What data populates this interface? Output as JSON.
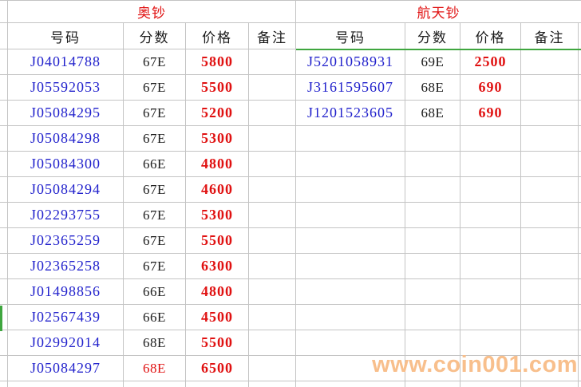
{
  "tables": {
    "left": {
      "title": "奥钞",
      "columns": [
        "号码",
        "分数",
        "价格",
        "备注"
      ],
      "rows": [
        {
          "number": "J04014788",
          "score": "67E",
          "price": "5800",
          "note": ""
        },
        {
          "number": "J05592053",
          "score": "67E",
          "price": "5500",
          "note": ""
        },
        {
          "number": "J05084295",
          "score": "67E",
          "price": "5200",
          "note": ""
        },
        {
          "number": "J05084298",
          "score": "67E",
          "price": "5300",
          "note": ""
        },
        {
          "number": "J05084300",
          "score": "66E",
          "price": "4800",
          "note": ""
        },
        {
          "number": "J05084294",
          "score": "67E",
          "price": "4600",
          "note": ""
        },
        {
          "number": "J02293755",
          "score": "67E",
          "price": "5300",
          "note": ""
        },
        {
          "number": "J02365259",
          "score": "67E",
          "price": "5500",
          "note": ""
        },
        {
          "number": "J02365258",
          "score": "67E",
          "price": "6300",
          "note": ""
        },
        {
          "number": "J01498856",
          "score": "66E",
          "price": "4800",
          "note": ""
        },
        {
          "number": "J02567439",
          "score": "66E",
          "price": "4500",
          "note": ""
        },
        {
          "number": "J02992014",
          "score": "68E",
          "price": "5500",
          "note": ""
        },
        {
          "number": "J05084297",
          "score": "68E",
          "price": "6500",
          "note": "",
          "score_red": true
        }
      ]
    },
    "right": {
      "title": "航天钞",
      "columns": [
        "号码",
        "分数",
        "价格",
        "备注"
      ],
      "rows": [
        {
          "number": "J5201058931",
          "score": "69E",
          "price": "2500",
          "note": ""
        },
        {
          "number": "J3161595607",
          "score": "68E",
          "price": "690",
          "note": ""
        },
        {
          "number": "J1201523605",
          "score": "68E",
          "price": "690",
          "note": ""
        }
      ]
    }
  },
  "body_row_count": 13,
  "watermark": {
    "text": "www.coin001.com",
    "color": "#f8bf8c"
  },
  "colors": {
    "gridline": "#c4c4c4",
    "number_blue": "#2222cc",
    "price_red": "#e01111",
    "title_red": "#e01111",
    "score_black": "#1c1c1c",
    "selection_green": "#3fa63f"
  }
}
